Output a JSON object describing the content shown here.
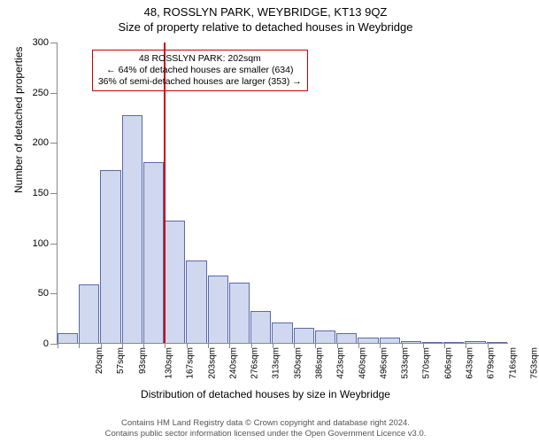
{
  "header": {
    "address": "48, ROSSLYN PARK, WEYBRIDGE, KT13 9QZ",
    "subtitle": "Size of property relative to detached houses in Weybridge"
  },
  "chart": {
    "type": "histogram",
    "ylabel": "Number of detached properties",
    "xlabel": "Distribution of detached houses by size in Weybridge",
    "ylim": [
      0,
      300
    ],
    "ytick_step": 50,
    "yticks": [
      0,
      50,
      100,
      150,
      200,
      250,
      300
    ],
    "xtick_labels": [
      "20sqm",
      "57sqm",
      "93sqm",
      "130sqm",
      "167sqm",
      "203sqm",
      "240sqm",
      "276sqm",
      "313sqm",
      "350sqm",
      "386sqm",
      "423sqm",
      "460sqm",
      "496sqm",
      "533sqm",
      "570sqm",
      "606sqm",
      "643sqm",
      "679sqm",
      "716sqm",
      "753sqm"
    ],
    "values": [
      10,
      58,
      172,
      227,
      180,
      122,
      82,
      67,
      60,
      32,
      20,
      15,
      12,
      10,
      5,
      5,
      2,
      0,
      0,
      2,
      1
    ],
    "bar_fill": "#cfd8ef",
    "bar_stroke": "#5a6aa8",
    "background_color": "#ffffff",
    "axis_color": "#888888",
    "reference_line": {
      "value_sqm": 202,
      "bar_index": 5,
      "color": "#cc0000",
      "width": 2
    },
    "annotation": {
      "border_color": "#cc0000",
      "bg_color": "rgba(255,255,255,0)",
      "lines": [
        "48 ROSSLYN PARK: 202sqm",
        "← 64% of detached houses are smaller (634)",
        "36% of semi-detached houses are larger (353) →"
      ],
      "fontsize": 10.5,
      "pos_bar_index_left": 1.6,
      "pos_y_value": 293
    }
  },
  "footer": {
    "line1": "Contains HM Land Registry data © Crown copyright and database right 2024.",
    "line2": "Contains public sector information licensed under the Open Government Licence v3.0."
  }
}
